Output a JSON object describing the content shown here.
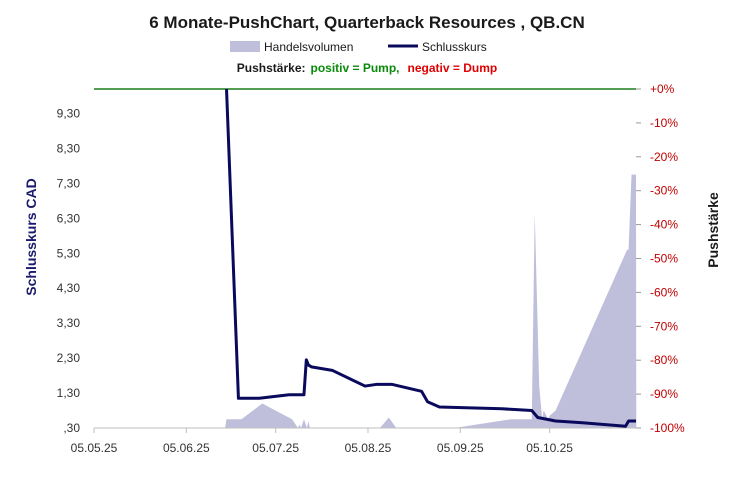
{
  "chart_data": {
    "type": "line",
    "title": "6 Monate-PushChart,  Quarterback Resources , QB.CN",
    "legend": [
      {
        "label": "Handelsvolumen",
        "color": "#bfbfdc",
        "kind": "area"
      },
      {
        "label": "Schlusskurs",
        "color": "#0a0a5c",
        "kind": "line"
      }
    ],
    "pushstaerke": {
      "label": "Pushstärke:",
      "positive": "positiv = Pump,",
      "negative": "negativ = Dump",
      "positive_color": "#0a8a0a",
      "negative_color": "#e00000"
    },
    "ylabel_left": "Schlusskurs CAD",
    "ylabel_right": "Pushstärke",
    "yticks_left": [
      ",30",
      "1,30",
      "2,30",
      "3,30",
      "4,30",
      "5,30",
      "6,30",
      "7,30",
      "8,30",
      "9,30"
    ],
    "yticks_left_values": [
      0.3,
      1.3,
      2.3,
      3.3,
      4.3,
      5.3,
      6.3,
      7.3,
      8.3,
      9.3
    ],
    "ylim_left": [
      0.3,
      10.0
    ],
    "yticks_right": [
      "+0%",
      "-10%",
      "-20%",
      "-30%",
      "-40%",
      "-50%",
      "-60%",
      "-70%",
      "-80%",
      "-90%",
      "-100%"
    ],
    "yticks_right_values": [
      0,
      -10,
      -20,
      -30,
      -40,
      -50,
      -60,
      -70,
      -80,
      -90,
      -100
    ],
    "ylim_right": [
      -100,
      0
    ],
    "xticks": [
      "05.05.25",
      "05.06.25",
      "05.07.25",
      "05.08.25",
      "05.09.25",
      "05.10.25"
    ],
    "xticks_days": [
      0,
      31,
      61,
      92,
      123,
      153
    ],
    "x_range_days": [
      0,
      182
    ],
    "zero_line": {
      "value": 0,
      "color": "#1a7f1a"
    },
    "series": [
      {
        "name": "Schlusskurs",
        "color": "#0a0a5c",
        "x_days": [
          44.5,
          48.5,
          55.5,
          65.5,
          70.5,
          71.3,
          72,
          73,
          80,
          91,
          95,
          100,
          110,
          112,
          116,
          137,
          147,
          149,
          155,
          164,
          178.5,
          179.5,
          182
        ],
        "values": [
          10.0,
          1.15,
          1.15,
          1.25,
          1.25,
          2.25,
          2.1,
          2.05,
          1.95,
          1.5,
          1.55,
          1.55,
          1.35,
          1.05,
          0.9,
          0.85,
          0.8,
          0.6,
          0.5,
          0.45,
          0.35,
          0.5,
          0.5
        ]
      },
      {
        "name": "Handelsvolumen",
        "color": "#bfbfdc",
        "x_days": [
          44,
          44.5,
          49.5,
          56.5,
          66.5,
          68.5,
          69,
          69.5,
          70.5,
          71.5,
          72,
          72.5,
          74,
          96,
          99,
          101.5,
          104,
          121,
          140,
          147,
          148,
          149.5,
          150.5,
          151,
          152.5,
          153,
          155,
          179,
          179.5,
          180.5,
          182,
          182.1
        ],
        "values": [
          0.3,
          0.55,
          0.55,
          1.0,
          0.55,
          0.3,
          0.4,
          0.3,
          0.55,
          0.3,
          0.5,
          0.3,
          0.3,
          0.3,
          0.6,
          0.3,
          0.3,
          0.3,
          0.55,
          0.55,
          6.45,
          1.5,
          0.55,
          0.8,
          0.55,
          0.65,
          0.8,
          5.4,
          5.4,
          7.55,
          7.55,
          0.3
        ]
      }
    ]
  }
}
